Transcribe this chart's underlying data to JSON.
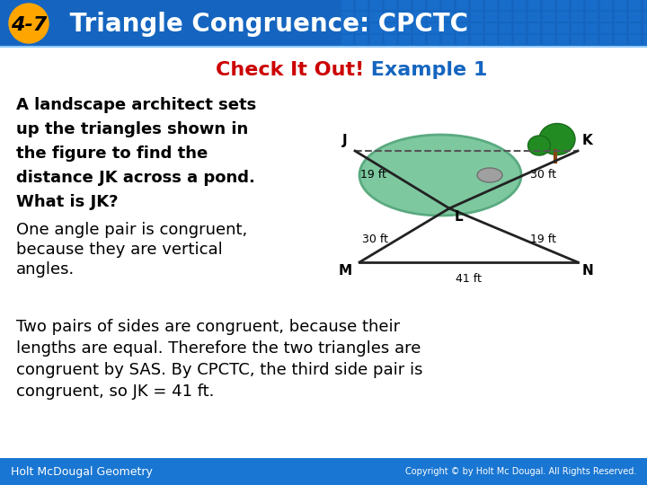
{
  "title_number": "4-7",
  "title_text": " Triangle Congruence: CPCTC",
  "subtitle_red": "Check It Out!",
  "subtitle_blue": " Example 1",
  "header_bg_color": "#1565C0",
  "header_gradient_right": "#1976D2",
  "number_bg_color": "#FFA500",
  "footer_bg_color": "#1976D2",
  "footer_left": "Holt McDougal Geometry",
  "footer_right": "Copyright © by Holt Mc Dougal. All Rights Reserved.",
  "body_bg_color": "#FFFFFF",
  "bold_text_lines": [
    "A landscape architect sets",
    "up the triangles shown in",
    "the figure to find the",
    "distance JK across a pond.",
    "What is JK?"
  ],
  "bold_italic_words": [
    "JK",
    "JK"
  ],
  "normal_text_lines": [
    "One angle pair is congruent,",
    "because they are vertical",
    "angles."
  ],
  "bottom_text": "Two pairs of sides are congruent, because their\nlengths are equal. Therefore the two triangles are\ncongruent by SAS. By CPCTC, the third side pair is\ncongruent, so JK = 41 ft.",
  "subtitle_color_red": "#CC0000",
  "subtitle_color_blue": "#1565C0"
}
